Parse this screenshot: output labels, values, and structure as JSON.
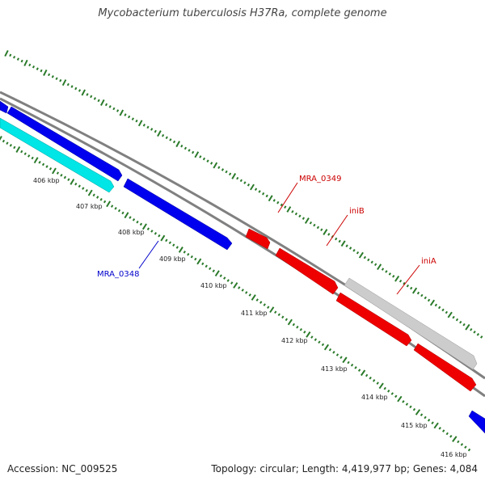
{
  "title": "Mycobacterium tuberculosis H37Ra, complete genome",
  "footer": {
    "accession": "Accession: NC_009525",
    "summary": "Topology: circular; Length: 4,419,977 bp; Genes: 4,084"
  },
  "ticks": [
    "406 kbp",
    "407 kbp",
    "408 kbp",
    "409 kbp",
    "410 kbp",
    "411 kbp",
    "412 kbp",
    "413 kbp",
    "414 kbp",
    "415 kbp",
    "416 kbp"
  ],
  "gene_labels": [
    {
      "name": "MRA_0348",
      "color": "#0000cc"
    },
    {
      "name": "MRA_0349",
      "color": "#cc0000"
    },
    {
      "name": "iniB",
      "color": "#cc0000"
    },
    {
      "name": "iniA",
      "color": "#cc0000"
    }
  ],
  "colors": {
    "backbone": "#808080",
    "tick": "#2a7a2a",
    "blue_gene": "#0000ee",
    "cyan_gene": "#00e5e5",
    "red_gene": "#ee0000",
    "gray_gene": "#cccccc"
  }
}
